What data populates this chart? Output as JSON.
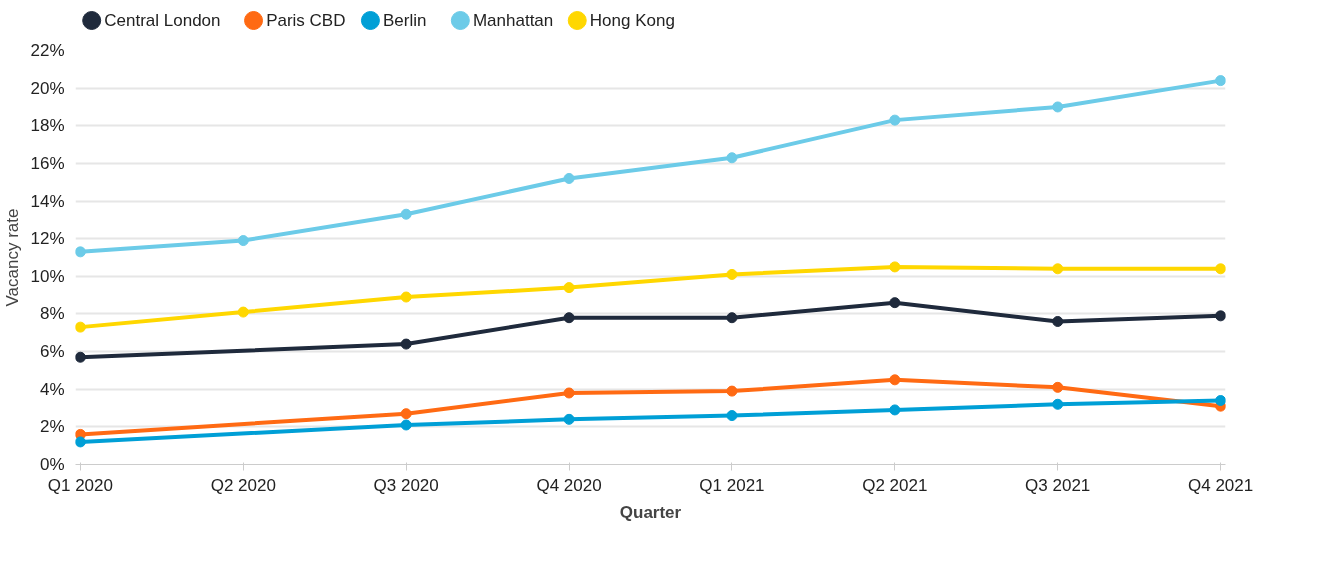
{
  "chart_data": {
    "type": "line",
    "xlabel": "Quarter",
    "ylabel": "Vacancy rate",
    "categories": [
      "Q1 2020",
      "Q2 2020",
      "Q3 2020",
      "Q4 2020",
      "Q1 2021",
      "Q2 2021",
      "Q3 2021",
      "Q4 2021"
    ],
    "series": [
      {
        "name": "Central London",
        "color": "#1f2a3c",
        "values": [
          5.7,
          null,
          6.4,
          7.8,
          7.8,
          8.6,
          7.6,
          7.9
        ]
      },
      {
        "name": "Paris CBD",
        "color": "#ff6a13",
        "values": [
          1.6,
          null,
          2.7,
          3.8,
          3.9,
          4.5,
          4.1,
          3.1
        ]
      },
      {
        "name": "Berlin",
        "color": "#009fd6",
        "values": [
          1.2,
          null,
          2.1,
          2.4,
          2.6,
          2.9,
          3.2,
          3.4
        ]
      },
      {
        "name": "Manhattan",
        "color": "#6ccbe8",
        "values": [
          11.3,
          11.9,
          13.3,
          15.2,
          16.3,
          18.3,
          19.0,
          20.4
        ]
      },
      {
        "name": "Hong Kong",
        "color": "#ffd700",
        "values": [
          7.3,
          8.1,
          8.9,
          9.4,
          10.1,
          10.5,
          10.4,
          10.4
        ]
      }
    ],
    "ylim": [
      0,
      22
    ],
    "yticks": [
      {
        "value": 0,
        "label": "0%"
      },
      {
        "value": 2,
        "label": "2%"
      },
      {
        "value": 4,
        "label": "4%"
      },
      {
        "value": 6,
        "label": "6%"
      },
      {
        "value": 8,
        "label": "8%"
      },
      {
        "value": 10,
        "label": "10%"
      },
      {
        "value": 12,
        "label": "12%"
      },
      {
        "value": 14,
        "label": "14%"
      },
      {
        "value": 16,
        "label": "16%"
      },
      {
        "value": 18,
        "label": "18%"
      },
      {
        "value": 20,
        "label": "20%"
      },
      {
        "value": 22,
        "label": "22%"
      }
    ],
    "grid": "y",
    "legend": "top left",
    "marker": "circle",
    "line_style": "solid"
  }
}
